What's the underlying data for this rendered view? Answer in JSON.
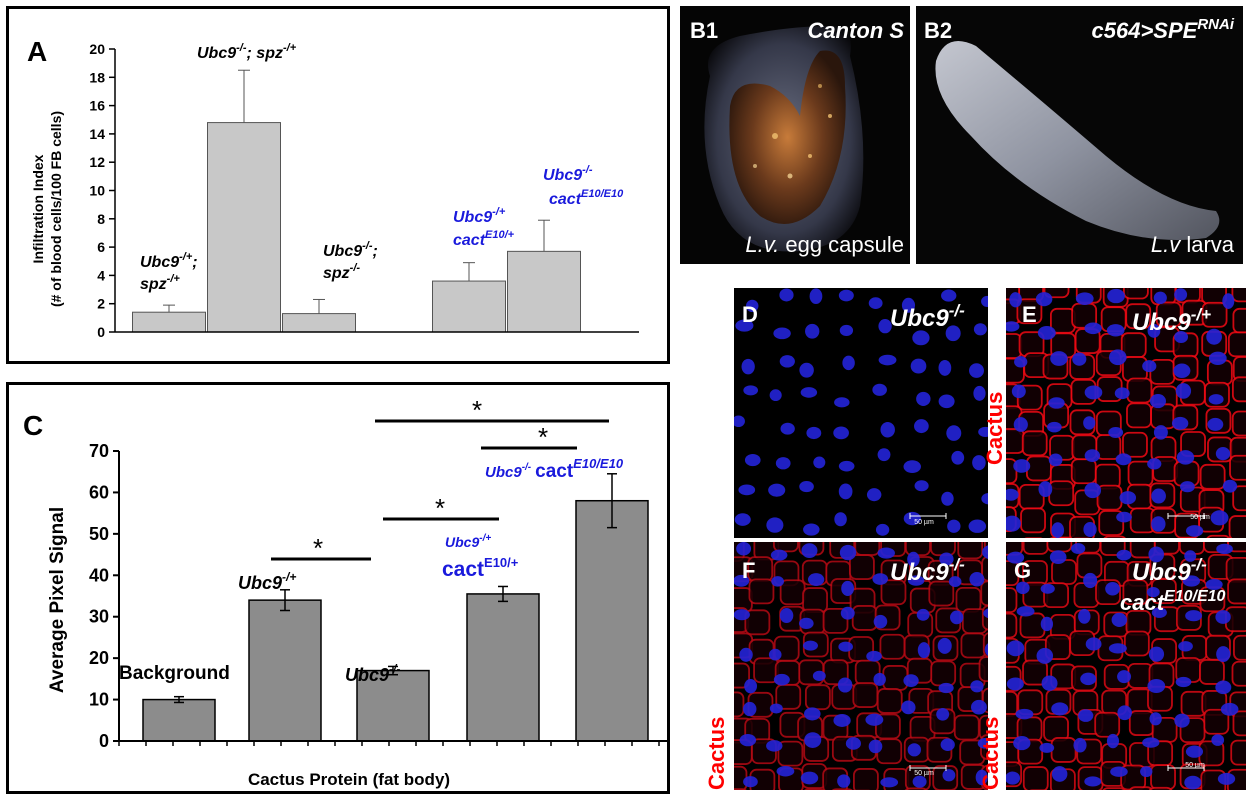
{
  "panels": {
    "A": {
      "letter": "A",
      "ylabel_line1": "Infiltration Index",
      "ylabel_line2": "(# of blood cells/100 FB cells)",
      "yticks": [
        "0",
        "2",
        "4",
        "6",
        "8",
        "10",
        "12",
        "14",
        "16",
        "18",
        "20"
      ],
      "bar_labels": {
        "b1_l1": "Ubc9",
        "b1_s1": "-/+",
        "b1_l1b": ";",
        "b1_l2": "spz",
        "b1_s2": "-/+",
        "b2_l1": "Ubc9",
        "b2_s1": "-/-",
        "b2_l1b": "; spz",
        "b2_s2": "-/+",
        "b3_l1": "Ubc9",
        "b3_s1": "-/-",
        "b3_l1b": ";",
        "b3_l2": "spz",
        "b3_s2": "-/-",
        "b4_l1": "Ubc9",
        "b4_s1": "-/+",
        "b4_l2": "cact",
        "b4_s2": "E10/+",
        "b5_l1": "Ubc9",
        "b5_s1": "-/-",
        "b5_l2": "cact",
        "b5_s2": "E10/E10"
      }
    },
    "B1": {
      "letter": "B1",
      "title": "Canton S",
      "caption_italic": "L.v.",
      "caption_rest": " egg capsule"
    },
    "B2": {
      "letter": "B2",
      "title_main": "c564>SPE",
      "title_sup": "RNAi",
      "caption_italic": "L.v",
      "caption_rest": " larva"
    },
    "C": {
      "letter": "C",
      "ylabel": "Average Pixel Signal",
      "xlabel": "Cactus Protein (fat body)",
      "yticks": [
        "0",
        "10",
        "20",
        "30",
        "40",
        "50",
        "60",
        "70"
      ],
      "star": "*",
      "bar_labels": {
        "bg": "Background",
        "b2_l1": "Ubc9",
        "b2_s1": "-/+",
        "b3_l1": "Ubc9",
        "b3_s1": "-/-",
        "b4_l1": "Ubc9",
        "b4_s1": "-/+",
        "b4_l2": "cact",
        "b4_s2": "E10/+",
        "b5_l1": "Ubc9",
        "b5_s1": "-/-",
        "b5_l2": "cact",
        "b5_s2": "E10/E10"
      }
    },
    "D": {
      "letter": "D",
      "label": "Ubc9",
      "sup": "-/-",
      "scale": "50 µm"
    },
    "E": {
      "letter": "E",
      "label": "Ubc9",
      "sup": "-/+",
      "scale": "50 µm",
      "side": "Cactus"
    },
    "F": {
      "letter": "F",
      "label": "Ubc9",
      "sup": "-/-",
      "scale": "50 µm",
      "side": "Cactus"
    },
    "G": {
      "letter": "G",
      "label": "Ubc9",
      "sup": "-/-",
      "label2": "cact",
      "sup2": "E10/E10",
      "scale": "50 µm",
      "side": "Cactus"
    }
  },
  "colors": {
    "blue_label": "#1a1adc",
    "red_label": "#ff0000",
    "barA": "#c8c8c8",
    "barC": "#8c8c8c"
  },
  "chart_data": [
    {
      "type": "bar",
      "panel": "A",
      "categories": [
        "Ubc9-/+; spz-/+",
        "Ubc9-/-; spz-/+",
        "Ubc9-/-; spz-/-",
        "Ubc9-/+ cactE10/+",
        "Ubc9-/- cactE10/E10"
      ],
      "values": [
        1.4,
        14.8,
        1.3,
        3.6,
        5.7
      ],
      "errors": [
        0.5,
        3.7,
        1.0,
        1.3,
        2.2
      ],
      "ylabel": "Infiltration Index (# of blood cells/100 FB cells)",
      "ylim": [
        0,
        20
      ],
      "grid": false
    },
    {
      "type": "bar",
      "panel": "C",
      "categories": [
        "Background",
        "Ubc9-/+",
        "Ubc9-/-",
        "Ubc9-/+ cactE10/+",
        "Ubc9-/- cactE10/E10"
      ],
      "values": [
        10,
        34,
        17,
        35.5,
        58
      ],
      "errors": [
        0.7,
        2.5,
        1.0,
        1.8,
        6.5
      ],
      "ylabel": "Average Pixel Signal",
      "xlabel": "Cactus Protein (fat body)",
      "ylim": [
        0,
        70
      ],
      "grid": false
    }
  ]
}
